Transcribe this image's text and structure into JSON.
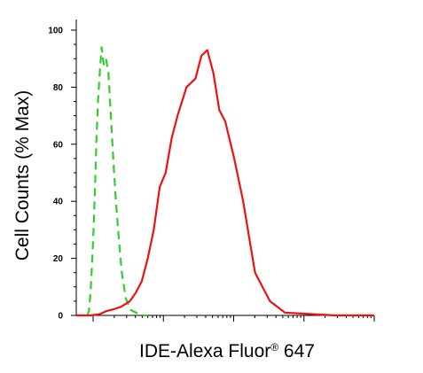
{
  "chart_data": {
    "type": "line",
    "title": "",
    "xlabel": "IDE-Alexa Fluor® 647",
    "ylabel": "Cell Counts (% Max)",
    "xscale": "log",
    "xlim": [
      0,
      100
    ],
    "ylim": [
      0,
      100
    ],
    "yticks": [
      0,
      20,
      40,
      60,
      80,
      100
    ],
    "xtick_labels_shown": false,
    "grid": false,
    "legend": "none",
    "series": [
      {
        "style": "dashed",
        "color": "#33cc33",
        "x": [
          3.8,
          4.3,
          4.8,
          5.3,
          5.8,
          6.3,
          6.8,
          7.3,
          7.9,
          8.5,
          9.2,
          10.0,
          10.8,
          11.6,
          12.4,
          13.3,
          14.2,
          15.3,
          16.6,
          18.2,
          20.0,
          22.0,
          24.0
        ],
        "y": [
          0,
          2,
          8,
          18,
          30,
          45,
          62,
          75,
          85,
          94,
          88,
          90,
          85,
          70,
          55,
          40,
          28,
          15,
          6,
          2,
          1,
          0,
          0
        ]
      },
      {
        "style": "solid",
        "color": "#ee1111",
        "x": [
          0,
          5.0,
          8.0,
          10.0,
          12.0,
          15.0,
          18.0,
          20.0,
          22.0,
          24.0,
          26.0,
          28.0,
          30.0,
          32.0,
          34.0,
          37.0,
          40.0,
          42.0,
          44.0,
          46.0,
          48.0,
          50.0,
          53.0,
          56.0,
          60.0,
          65.0,
          70.0,
          78.0,
          87.0,
          93.0,
          100.0
        ],
        "y": [
          0,
          0,
          0.5,
          1.5,
          2,
          3,
          5,
          8,
          12,
          20,
          30,
          45,
          50,
          62,
          70,
          80,
          83,
          91,
          93,
          85,
          72,
          68,
          55,
          40,
          15,
          5,
          1,
          0.5,
          0,
          0,
          0
        ]
      }
    ]
  }
}
